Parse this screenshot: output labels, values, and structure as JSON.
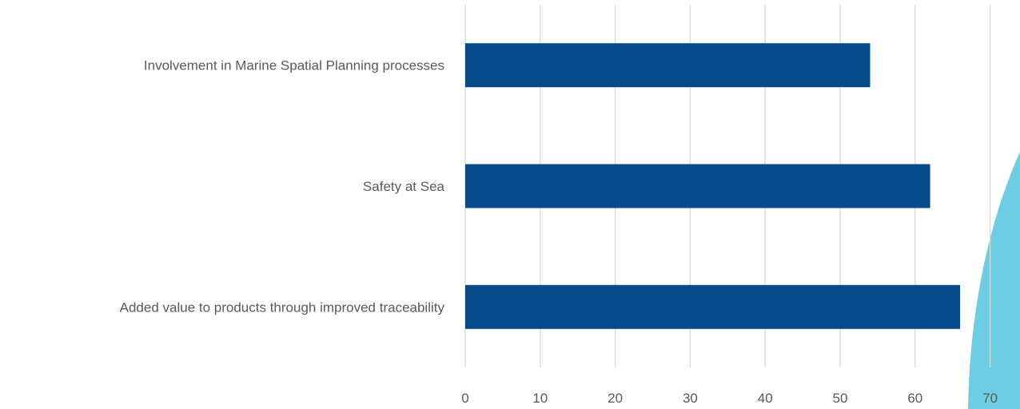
{
  "chart_data": {
    "type": "bar",
    "orientation": "horizontal",
    "title": "",
    "xlabel": "",
    "ylabel": "",
    "categories": [
      "Involvement in Marine Spatial Planning processes",
      "Safety at Sea",
      "Added value to products through improved traceability"
    ],
    "values": [
      54,
      62,
      66
    ],
    "xlim": [
      0,
      70
    ],
    "xticks": [
      "0",
      "10",
      "20",
      "30",
      "40",
      "50",
      "60",
      "70"
    ],
    "grid": true,
    "legend": "none",
    "bar_color": "#074a8a"
  },
  "decoration": {
    "accent_color": "#6dcde3"
  }
}
